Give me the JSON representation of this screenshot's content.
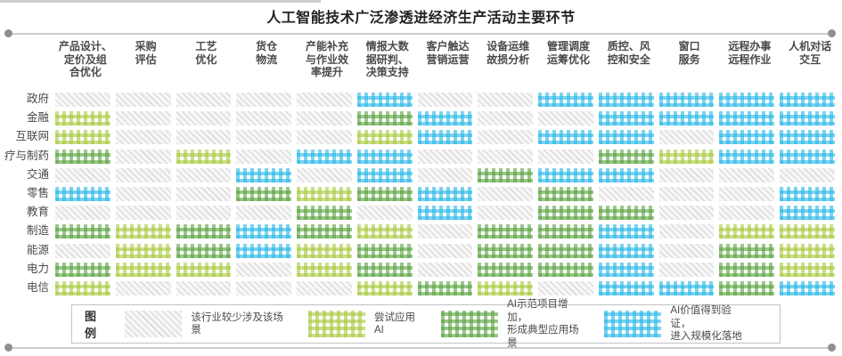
{
  "title": "人工智能技术广泛渗透进经济生产活动主要环节",
  "legend": {
    "label": "图例",
    "items": [
      {
        "status": "none",
        "text": "该行业较少涉及该场景"
      },
      {
        "status": "try",
        "text": "尝试应用AI"
      },
      {
        "status": "demo",
        "text": "AI示范项目增加，\n形成典型应用场景"
      },
      {
        "status": "scale",
        "text": "AI价值得到验证，\n进入规模化落地"
      }
    ]
  },
  "chart_data": {
    "type": "heatmap",
    "title": "人工智能技术广泛渗透进经济生产活动主要环节",
    "x_categories": [
      "产品设计、定价及组合优化",
      "采购评估",
      "工艺优化",
      "货仓物流",
      "产能补充与作业效率提升",
      "情报大数据研判、决策支持",
      "客户触达营销运营",
      "设备运维故损分析",
      "管理调度运筹优化",
      "质控、风控和安全",
      "窗口服务",
      "远程办事远程作业",
      "人机对话交互"
    ],
    "x_category_lines": [
      [
        "产品设计、",
        "定价及组",
        "合优化"
      ],
      [
        "采购",
        "评估"
      ],
      [
        "工艺",
        "优化"
      ],
      [
        "货仓",
        "物流"
      ],
      [
        "产能补充",
        "与作业效",
        "率提升"
      ],
      [
        "情报大数",
        "据研判、",
        "决策支持"
      ],
      [
        "客户触达",
        "营销运营"
      ],
      [
        "设备运维",
        "故损分析"
      ],
      [
        "管理调度",
        "运筹优化"
      ],
      [
        "质控、风",
        "控和安全"
      ],
      [
        "窗口",
        "服务"
      ],
      [
        "远程办事",
        "远程作业"
      ],
      [
        "人机对话",
        "交互"
      ]
    ],
    "y_categories": [
      "政府",
      "金融",
      "互联网",
      "疗与制药",
      "交通",
      "零售",
      "教育",
      "制造",
      "能源",
      "电力",
      "电信"
    ],
    "levels": {
      "none": "该行业较少涉及该场景",
      "try": "尝试应用AI",
      "demo": "AI示范项目增加，形成典型应用场景",
      "scale": "AI价值得到验证，进入规模化落地"
    },
    "colors": {
      "none": "#dcdcdc",
      "try": "#a6c93b",
      "demo": "#57a13c",
      "scale": "#29b8e8"
    },
    "values": [
      [
        "none",
        "none",
        "none",
        "none",
        "none",
        "scale",
        "none",
        "none",
        "scale",
        "scale",
        "scale",
        "scale",
        "scale"
      ],
      [
        "try",
        "none",
        "none",
        "none",
        "none",
        "demo",
        "scale",
        "none",
        "none",
        "scale",
        "scale",
        "scale",
        "scale"
      ],
      [
        "try",
        "none",
        "none",
        "none",
        "none",
        "try",
        "scale",
        "none",
        "scale",
        "scale",
        "none",
        "scale",
        "scale"
      ],
      [
        "demo",
        "none",
        "try",
        "none",
        "scale",
        "scale",
        "none",
        "none",
        "none",
        "demo",
        "try",
        "scale",
        "scale"
      ],
      [
        "none",
        "none",
        "none",
        "scale",
        "none",
        "scale",
        "none",
        "demo",
        "scale",
        "scale",
        "none",
        "none",
        "none"
      ],
      [
        "scale",
        "none",
        "none",
        "demo",
        "try",
        "demo",
        "scale",
        "none",
        "demo",
        "none",
        "none",
        "none",
        "scale"
      ],
      [
        "none",
        "none",
        "none",
        "none",
        "demo",
        "none",
        "scale",
        "none",
        "demo",
        "demo",
        "none",
        "none",
        "scale"
      ],
      [
        "demo",
        "try",
        "demo",
        "scale",
        "demo",
        "try",
        "none",
        "demo",
        "demo",
        "scale",
        "none",
        "try",
        "try"
      ],
      [
        "none",
        "try",
        "demo",
        "scale",
        "try",
        "demo",
        "none",
        "demo",
        "demo",
        "scale",
        "none",
        "demo",
        "try"
      ],
      [
        "demo",
        "try",
        "try",
        "none",
        "try",
        "demo",
        "none",
        "demo",
        "demo",
        "scale",
        "none",
        "demo",
        "try"
      ],
      [
        "try",
        "none",
        "none",
        "none",
        "none",
        "try",
        "demo",
        "try",
        "none",
        "scale",
        "scale",
        "demo",
        "scale"
      ]
    ]
  }
}
